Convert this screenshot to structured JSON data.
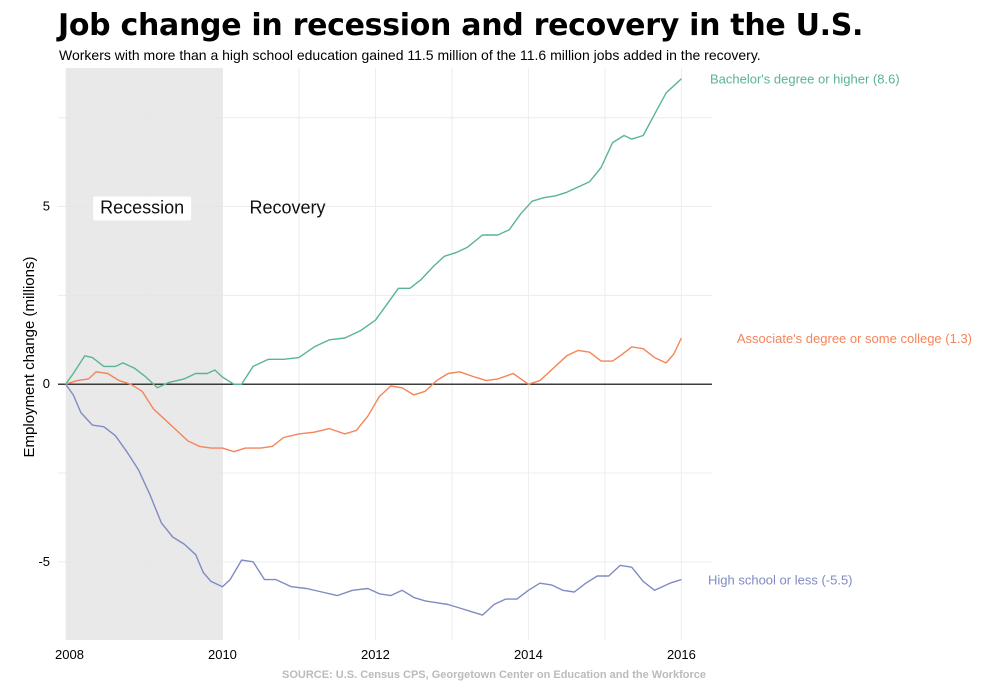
{
  "title": "Job change in recession and recovery in the U.S.",
  "subtitle": "Workers with more than a high school education gained 11.5 million of the 11.6 million jobs added in the recovery.",
  "source": "SOURCE: U.S. Census CPS, Georgetown Center on Education and the Workforce",
  "chart_data": {
    "type": "line",
    "ylabel": "Employment change (millions)",
    "xlabel": "",
    "xlim": [
      2007.85,
      2016.4
    ],
    "ylim": [
      -7.2,
      8.9
    ],
    "x_ticks": [
      2008,
      2010,
      2012,
      2014,
      2016
    ],
    "y_ticks": [
      -5,
      0,
      5
    ],
    "grid": true,
    "zero_line": true,
    "shaded_region": {
      "label": "Recession",
      "start": 2007.95,
      "end": 2010.0
    },
    "annotations": [
      "Recession",
      "Recovery"
    ],
    "series": [
      {
        "name": "Bachelor's degree or higher (8.6)",
        "color": "#5ab58f",
        "points": [
          [
            2007.95,
            0.0
          ],
          [
            2008.05,
            0.3
          ],
          [
            2008.2,
            0.8
          ],
          [
            2008.3,
            0.75
          ],
          [
            2008.45,
            0.5
          ],
          [
            2008.6,
            0.5
          ],
          [
            2008.7,
            0.6
          ],
          [
            2008.85,
            0.45
          ],
          [
            2009.0,
            0.2
          ],
          [
            2009.15,
            -0.1
          ],
          [
            2009.3,
            0.05
          ],
          [
            2009.5,
            0.15
          ],
          [
            2009.65,
            0.3
          ],
          [
            2009.8,
            0.3
          ],
          [
            2009.9,
            0.4
          ],
          [
            2010.0,
            0.2
          ],
          [
            2010.15,
            0.0
          ],
          [
            2010.25,
            0.0
          ],
          [
            2010.4,
            0.5
          ],
          [
            2010.6,
            0.7
          ],
          [
            2010.8,
            0.7
          ],
          [
            2011.0,
            0.75
          ],
          [
            2011.2,
            1.05
          ],
          [
            2011.4,
            1.25
          ],
          [
            2011.6,
            1.3
          ],
          [
            2011.8,
            1.5
          ],
          [
            2012.0,
            1.8
          ],
          [
            2012.15,
            2.25
          ],
          [
            2012.3,
            2.7
          ],
          [
            2012.45,
            2.7
          ],
          [
            2012.6,
            2.95
          ],
          [
            2012.75,
            3.3
          ],
          [
            2012.9,
            3.6
          ],
          [
            2013.05,
            3.7
          ],
          [
            2013.2,
            3.85
          ],
          [
            2013.4,
            4.2
          ],
          [
            2013.6,
            4.2
          ],
          [
            2013.75,
            4.35
          ],
          [
            2013.9,
            4.8
          ],
          [
            2014.05,
            5.15
          ],
          [
            2014.2,
            5.25
          ],
          [
            2014.35,
            5.3
          ],
          [
            2014.5,
            5.4
          ],
          [
            2014.65,
            5.55
          ],
          [
            2014.8,
            5.7
          ],
          [
            2014.95,
            6.1
          ],
          [
            2015.1,
            6.8
          ],
          [
            2015.25,
            7.0
          ],
          [
            2015.35,
            6.9
          ],
          [
            2015.5,
            7.0
          ],
          [
            2015.65,
            7.6
          ],
          [
            2015.8,
            8.2
          ],
          [
            2015.9,
            8.4
          ],
          [
            2016.0,
            8.6
          ]
        ]
      },
      {
        "name": "Associate's degree or some college (1.3)",
        "color": "#f4845a",
        "points": [
          [
            2007.95,
            0.0
          ],
          [
            2008.1,
            0.1
          ],
          [
            2008.25,
            0.15
          ],
          [
            2008.35,
            0.35
          ],
          [
            2008.5,
            0.3
          ],
          [
            2008.65,
            0.1
          ],
          [
            2008.8,
            0.0
          ],
          [
            2008.95,
            -0.2
          ],
          [
            2009.1,
            -0.7
          ],
          [
            2009.25,
            -1.0
          ],
          [
            2009.4,
            -1.3
          ],
          [
            2009.55,
            -1.6
          ],
          [
            2009.7,
            -1.75
          ],
          [
            2009.85,
            -1.8
          ],
          [
            2010.0,
            -1.8
          ],
          [
            2010.15,
            -1.9
          ],
          [
            2010.3,
            -1.8
          ],
          [
            2010.5,
            -1.8
          ],
          [
            2010.65,
            -1.75
          ],
          [
            2010.8,
            -1.5
          ],
          [
            2011.0,
            -1.4
          ],
          [
            2011.2,
            -1.35
          ],
          [
            2011.4,
            -1.25
          ],
          [
            2011.6,
            -1.4
          ],
          [
            2011.75,
            -1.3
          ],
          [
            2011.9,
            -0.9
          ],
          [
            2012.05,
            -0.35
          ],
          [
            2012.2,
            -0.05
          ],
          [
            2012.35,
            -0.1
          ],
          [
            2012.5,
            -0.3
          ],
          [
            2012.65,
            -0.2
          ],
          [
            2012.8,
            0.1
          ],
          [
            2012.95,
            0.3
          ],
          [
            2013.1,
            0.35
          ],
          [
            2013.3,
            0.2
          ],
          [
            2013.45,
            0.1
          ],
          [
            2013.6,
            0.15
          ],
          [
            2013.8,
            0.3
          ],
          [
            2014.0,
            0.0
          ],
          [
            2014.15,
            0.1
          ],
          [
            2014.3,
            0.4
          ],
          [
            2014.5,
            0.8
          ],
          [
            2014.65,
            0.95
          ],
          [
            2014.8,
            0.9
          ],
          [
            2014.95,
            0.65
          ],
          [
            2015.1,
            0.65
          ],
          [
            2015.2,
            0.8
          ],
          [
            2015.35,
            1.05
          ],
          [
            2015.5,
            1.0
          ],
          [
            2015.65,
            0.75
          ],
          [
            2015.8,
            0.6
          ],
          [
            2015.9,
            0.85
          ],
          [
            2016.0,
            1.3
          ]
        ]
      },
      {
        "name": "High school or less (-5.5)",
        "color": "#7f8bc4",
        "points": [
          [
            2007.95,
            0.0
          ],
          [
            2008.05,
            -0.3
          ],
          [
            2008.15,
            -0.8
          ],
          [
            2008.3,
            -1.15
          ],
          [
            2008.45,
            -1.2
          ],
          [
            2008.6,
            -1.45
          ],
          [
            2008.75,
            -1.9
          ],
          [
            2008.9,
            -2.4
          ],
          [
            2009.05,
            -3.1
          ],
          [
            2009.2,
            -3.9
          ],
          [
            2009.35,
            -4.3
          ],
          [
            2009.5,
            -4.5
          ],
          [
            2009.65,
            -4.8
          ],
          [
            2009.75,
            -5.3
          ],
          [
            2009.85,
            -5.55
          ],
          [
            2010.0,
            -5.7
          ],
          [
            2010.1,
            -5.5
          ],
          [
            2010.25,
            -4.95
          ],
          [
            2010.4,
            -5.0
          ],
          [
            2010.55,
            -5.5
          ],
          [
            2010.7,
            -5.5
          ],
          [
            2010.9,
            -5.7
          ],
          [
            2011.1,
            -5.75
          ],
          [
            2011.3,
            -5.85
          ],
          [
            2011.5,
            -5.95
          ],
          [
            2011.7,
            -5.8
          ],
          [
            2011.9,
            -5.75
          ],
          [
            2012.05,
            -5.9
          ],
          [
            2012.2,
            -5.95
          ],
          [
            2012.35,
            -5.8
          ],
          [
            2012.5,
            -6.0
          ],
          [
            2012.65,
            -6.1
          ],
          [
            2012.8,
            -6.15
          ],
          [
            2012.95,
            -6.2
          ],
          [
            2013.1,
            -6.3
          ],
          [
            2013.25,
            -6.4
          ],
          [
            2013.4,
            -6.5
          ],
          [
            2013.55,
            -6.2
          ],
          [
            2013.7,
            -6.05
          ],
          [
            2013.85,
            -6.05
          ],
          [
            2014.0,
            -5.8
          ],
          [
            2014.15,
            -5.6
          ],
          [
            2014.3,
            -5.65
          ],
          [
            2014.45,
            -5.8
          ],
          [
            2014.6,
            -5.85
          ],
          [
            2014.75,
            -5.6
          ],
          [
            2014.9,
            -5.4
          ],
          [
            2015.05,
            -5.4
          ],
          [
            2015.2,
            -5.1
          ],
          [
            2015.35,
            -5.15
          ],
          [
            2015.5,
            -5.55
          ],
          [
            2015.65,
            -5.8
          ],
          [
            2015.75,
            -5.7
          ],
          [
            2015.85,
            -5.6
          ],
          [
            2016.0,
            -5.5
          ]
        ]
      }
    ]
  }
}
